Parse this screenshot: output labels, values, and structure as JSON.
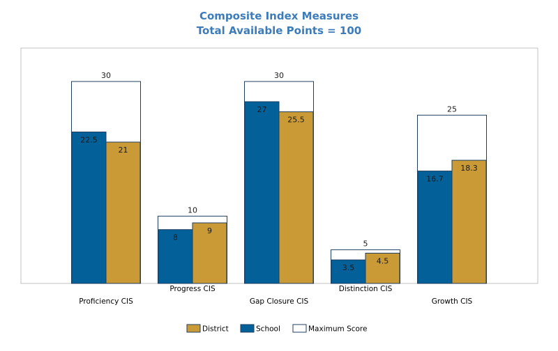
{
  "chart_data": {
    "type": "bar",
    "title": "Composite Index Measures",
    "subtitle": "Total Available Points = 100",
    "categories": [
      "Proficiency CIS",
      "Progress CIS",
      "Gap Closure CIS",
      "Distinction CIS",
      "Growth CIS"
    ],
    "series": [
      {
        "name": "School",
        "values": [
          22.5,
          8,
          27,
          3.5,
          16.7
        ],
        "labels": [
          "22.5",
          "8",
          "27",
          "3.5",
          "16.7"
        ],
        "color": "#036099"
      },
      {
        "name": "District",
        "values": [
          21,
          9,
          25.5,
          4.5,
          18.3
        ],
        "labels": [
          "21",
          "9",
          "25.5",
          "4.5",
          "18.3"
        ],
        "color": "#c99a35"
      }
    ],
    "max_score": {
      "name": "Maximum Score",
      "values": [
        30,
        10,
        30,
        5,
        25
      ],
      "labels": [
        "30",
        "10",
        "30",
        "5",
        "25"
      ],
      "color": "#ffffff"
    },
    "legend": {
      "position": "bottom",
      "items": [
        {
          "name": "District",
          "color": "#c99a35"
        },
        {
          "name": "School",
          "color": "#036099"
        },
        {
          "name": "Maximum Score",
          "color": "#ffffff"
        }
      ]
    },
    "xlabel": "",
    "ylabel": "",
    "ylim": [
      0,
      34
    ],
    "grid": false,
    "colors": {
      "title": "#3d7cb8",
      "border": "#1f3f5f",
      "plot_border": "#c0c0c0"
    }
  }
}
